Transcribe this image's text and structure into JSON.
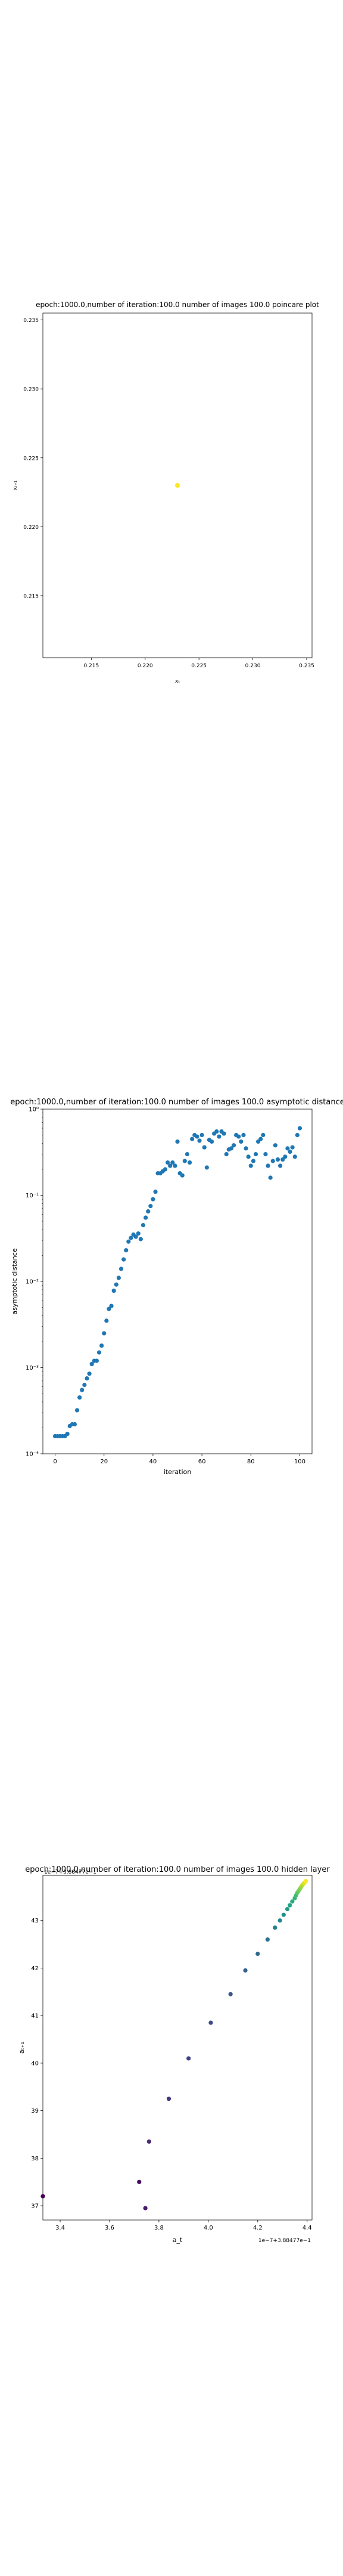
{
  "chart_data": [
    {
      "type": "scatter",
      "title": "epoch:1000.0,number of iteration:100.0 number of images 100.0 poincare plot",
      "xlabel": "xₜ",
      "ylabel": "xₜ₊₁",
      "xlim": [
        0.2105,
        0.2355
      ],
      "ylim": [
        0.2105,
        0.2355
      ],
      "xticks": [
        "0.215",
        "0.220",
        "0.225",
        "0.230",
        "0.235"
      ],
      "yticks": [
        "0.215",
        "0.220",
        "0.225",
        "0.230",
        "0.235"
      ],
      "points": [
        {
          "x": 0.223,
          "y": 0.223
        }
      ],
      "point_color": "#fde725",
      "grid": false
    },
    {
      "type": "scatter",
      "title": "epoch:1000.0,number of iteration:100.0  number of images 100.0 asymptotic distance",
      "xlabel": "iteration",
      "ylabel": "asymptotic distance",
      "scale_y": "log",
      "xlim": [
        -5,
        105
      ],
      "ylim": [
        0.0001,
        1
      ],
      "xticks": [
        "0",
        "20",
        "40",
        "60",
        "80",
        "100"
      ],
      "yticks": [
        "10⁻⁴",
        "10⁻³",
        "10⁻²",
        "10⁻¹",
        "10⁰"
      ],
      "point_color": "#1f77b4",
      "x": [
        0,
        1,
        2,
        3,
        4,
        5,
        6,
        7,
        8,
        9,
        10,
        11,
        12,
        13,
        14,
        15,
        16,
        17,
        18,
        19,
        20,
        21,
        22,
        23,
        24,
        25,
        26,
        27,
        28,
        29,
        30,
        31,
        32,
        33,
        34,
        35,
        36,
        37,
        38,
        39,
        40,
        41,
        42,
        43,
        44,
        45,
        46,
        47,
        48,
        49,
        50,
        51,
        52,
        53,
        54,
        55,
        56,
        57,
        58,
        59,
        60,
        61,
        62,
        63,
        64,
        65,
        66,
        67,
        68,
        69,
        70,
        71,
        72,
        73,
        74,
        75,
        76,
        77,
        78,
        79,
        80,
        81,
        82,
        83,
        84,
        85,
        86,
        87,
        88,
        89,
        90,
        91,
        92,
        93,
        94,
        95,
        96,
        97,
        98,
        99,
        100
      ],
      "y": [
        0.00016,
        0.00016,
        0.00016,
        0.00016,
        0.00016,
        0.00017,
        0.00021,
        0.00022,
        0.00022,
        0.00032,
        0.00045,
        0.00055,
        0.00063,
        0.00075,
        0.00085,
        0.0011,
        0.0012,
        0.0012,
        0.0015,
        0.0018,
        0.0025,
        0.0035,
        0.0048,
        0.0052,
        0.0078,
        0.0092,
        0.011,
        0.014,
        0.018,
        0.023,
        0.029,
        0.032,
        0.035,
        0.033,
        0.036,
        0.031,
        0.045,
        0.055,
        0.065,
        0.075,
        0.09,
        0.11,
        0.18,
        0.18,
        0.19,
        0.2,
        0.24,
        0.22,
        0.24,
        0.22,
        0.42,
        0.18,
        0.17,
        0.25,
        0.3,
        0.24,
        0.45,
        0.5,
        0.48,
        0.43,
        0.5,
        0.36,
        0.21,
        0.44,
        0.42,
        0.52,
        0.55,
        0.48,
        0.55,
        0.52,
        0.3,
        0.34,
        0.35,
        0.38,
        0.5,
        0.48,
        0.42,
        0.5,
        0.35,
        0.28,
        0.22,
        0.25,
        0.3,
        0.42,
        0.45,
        0.5,
        0.3,
        0.22,
        0.16,
        0.25,
        0.38,
        0.26,
        0.22,
        0.26,
        0.28,
        0.35,
        0.32,
        0.36,
        0.28,
        0.5,
        0.6
      ]
    },
    {
      "type": "scatter",
      "title": "epoch:1000.0,number of iteration:100.0  number of images 100.0 hidden layer",
      "xlabel": "a_t",
      "ylabel": "aₜ₊₁",
      "xticks": [
        "3.4",
        "3.6",
        "3.8",
        "4.0",
        "4.2",
        "4.4"
      ],
      "yticks": [
        "37",
        "38",
        "39",
        "40",
        "41",
        "42",
        "43"
      ],
      "x_offset_text": "1e−7+3.88477e−1",
      "y_offset_text": "1e−7+3.88477e−1",
      "xlim": [
        3.33,
        4.42
      ],
      "ylim": [
        36.7,
        43.95
      ],
      "colormap": "viridis",
      "points": [
        {
          "x": 3.33,
          "y": 37.2
        },
        {
          "x": 3.72,
          "y": 37.5
        },
        {
          "x": 3.745,
          "y": 36.95
        },
        {
          "x": 3.76,
          "y": 38.35
        },
        {
          "x": 3.84,
          "y": 39.25
        },
        {
          "x": 3.92,
          "y": 40.1
        },
        {
          "x": 4.01,
          "y": 40.85
        },
        {
          "x": 4.09,
          "y": 41.45
        },
        {
          "x": 4.15,
          "y": 41.95
        },
        {
          "x": 4.2,
          "y": 42.3
        },
        {
          "x": 4.24,
          "y": 42.6
        },
        {
          "x": 4.27,
          "y": 42.85
        },
        {
          "x": 4.29,
          "y": 43.0
        },
        {
          "x": 4.305,
          "y": 43.12
        },
        {
          "x": 4.32,
          "y": 43.24
        },
        {
          "x": 4.33,
          "y": 43.32
        },
        {
          "x": 4.34,
          "y": 43.4
        },
        {
          "x": 4.35,
          "y": 43.47
        },
        {
          "x": 4.355,
          "y": 43.53
        },
        {
          "x": 4.36,
          "y": 43.58
        },
        {
          "x": 4.365,
          "y": 43.62
        },
        {
          "x": 4.37,
          "y": 43.66
        },
        {
          "x": 4.375,
          "y": 43.7
        },
        {
          "x": 4.38,
          "y": 43.74
        },
        {
          "x": 4.385,
          "y": 43.77
        },
        {
          "x": 4.39,
          "y": 43.8
        },
        {
          "x": 4.395,
          "y": 43.83
        }
      ]
    }
  ]
}
